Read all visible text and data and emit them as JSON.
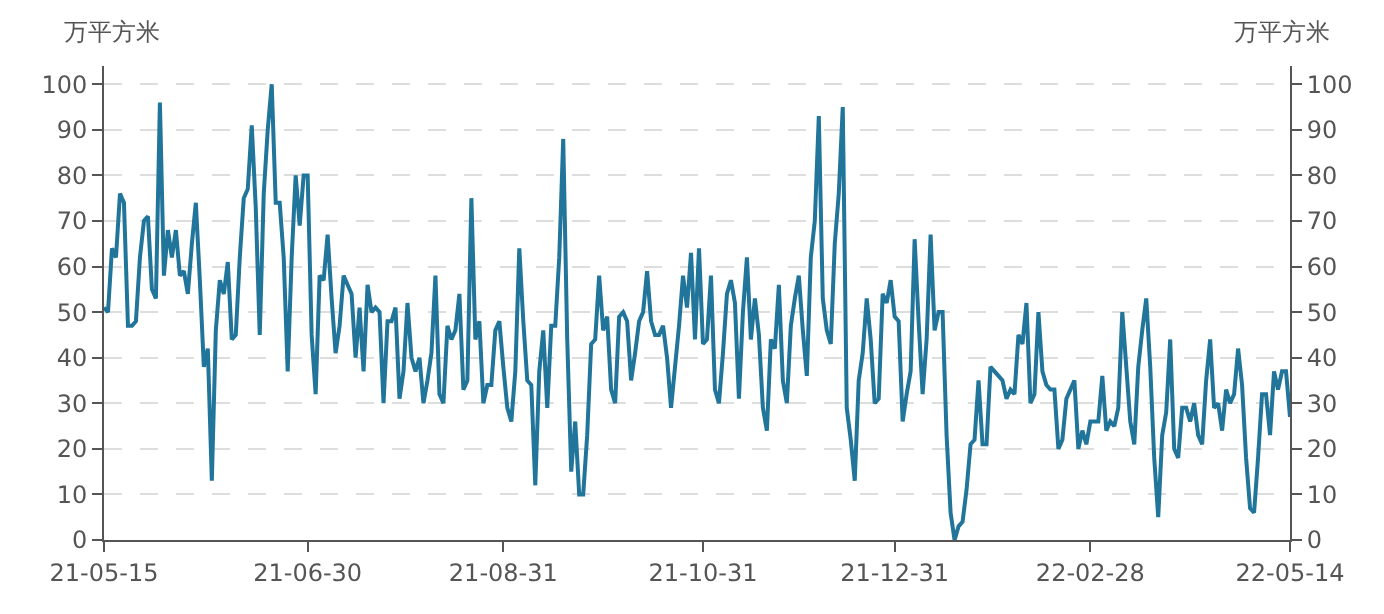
{
  "chart_data": {
    "type": "line",
    "ylabel": "万平方米",
    "y2label": "万平方米",
    "categories": [
      "21-05-15",
      null,
      null,
      null,
      null,
      null,
      null,
      null,
      null,
      null,
      null,
      null,
      null,
      null,
      null,
      null,
      null,
      null,
      null,
      null,
      null,
      null,
      null,
      null,
      null,
      null,
      null,
      null,
      null,
      null,
      null,
      null,
      null,
      null,
      null,
      null,
      null,
      null,
      null,
      null,
      null,
      null,
      null,
      null,
      null,
      null,
      null,
      null,
      null,
      null,
      null,
      "21-06-30",
      null,
      null,
      null,
      null,
      null,
      null,
      null,
      null,
      null,
      null,
      null,
      null,
      null,
      null,
      null,
      null,
      null,
      null,
      null,
      null,
      null,
      null,
      null,
      null,
      null,
      null,
      null,
      null,
      null,
      null,
      null,
      null,
      null,
      null,
      null,
      null,
      null,
      null,
      null,
      null,
      null,
      null,
      null,
      null,
      null,
      null,
      null,
      null,
      "21-08-31",
      null,
      null,
      null,
      null,
      null,
      null,
      null,
      null,
      null,
      null,
      null,
      null,
      null,
      null,
      null,
      null,
      null,
      null,
      null,
      null,
      null,
      null,
      null,
      null,
      null,
      null,
      null,
      null,
      null,
      null,
      null,
      null,
      null,
      null,
      null,
      null,
      null,
      null,
      null,
      null,
      null,
      null,
      null,
      null,
      null,
      null,
      null,
      null,
      null,
      "21-10-31",
      null,
      null,
      null,
      null,
      null,
      null,
      null,
      null,
      null,
      null,
      null,
      null,
      null,
      null,
      null,
      null,
      null,
      null,
      null,
      null,
      null,
      null,
      null,
      null,
      null,
      null,
      null,
      null,
      null,
      null,
      null,
      null,
      null,
      null,
      null,
      null,
      null,
      null,
      null,
      null,
      null,
      null,
      null,
      null,
      null,
      null,
      null,
      "21-12-31",
      null,
      null,
      null,
      null,
      null,
      null,
      null,
      null,
      null,
      null,
      null,
      null,
      null,
      null,
      null,
      null,
      null,
      null,
      null,
      null,
      null,
      null,
      null,
      null,
      null,
      null,
      null,
      null,
      null,
      null,
      null,
      null,
      null,
      null,
      null,
      null,
      null,
      null,
      null,
      null,
      null,
      null,
      null,
      null,
      null,
      null,
      null,
      null,
      "22-02-28",
      null,
      null,
      null,
      null,
      null,
      null,
      null,
      null,
      null,
      null,
      null,
      null,
      null,
      null,
      null,
      null,
      null,
      null,
      null,
      null,
      null,
      null,
      null,
      null,
      null,
      null,
      null,
      null,
      null,
      null,
      null,
      null,
      null,
      null,
      null,
      null,
      null,
      null,
      null,
      null,
      null,
      null,
      null,
      null,
      null,
      null,
      null,
      null,
      null,
      "22-05-14"
    ],
    "series": [
      {
        "color": "#21759b",
        "values": [
          51,
          50,
          64,
          62,
          76,
          74,
          47,
          47,
          48,
          62,
          70,
          71,
          55,
          53,
          96,
          58,
          68,
          62,
          68,
          58,
          59,
          54,
          65,
          74,
          57,
          38,
          42,
          13,
          46,
          57,
          54,
          61,
          44,
          45,
          62,
          75,
          77,
          91,
          73,
          45,
          76,
          90,
          100,
          74,
          74,
          62,
          37,
          62,
          80,
          69,
          80,
          80,
          45,
          32,
          58,
          57,
          67,
          53,
          41,
          47,
          58,
          56,
          54,
          40,
          51,
          37,
          56,
          50,
          51,
          50,
          30,
          48,
          48,
          51,
          31,
          37,
          52,
          40,
          37,
          40,
          30,
          35,
          41,
          58,
          32,
          30,
          47,
          44,
          46,
          54,
          33,
          35,
          75,
          44,
          48,
          30,
          34,
          34,
          46,
          48,
          38,
          29,
          26,
          37,
          64,
          48,
          35,
          34,
          12,
          37,
          46,
          29,
          47,
          47,
          62,
          88,
          44,
          15,
          26,
          10,
          10,
          23,
          43,
          44,
          58,
          46,
          49,
          33,
          30,
          49,
          50,
          48,
          35,
          41,
          48,
          50,
          59,
          48,
          45,
          45,
          47,
          40,
          29,
          38,
          47,
          58,
          51,
          63,
          44,
          64,
          43,
          44,
          58,
          33,
          30,
          41,
          54,
          57,
          52,
          31,
          50,
          62,
          44,
          53,
          45,
          29,
          24,
          44,
          42,
          56,
          35,
          30,
          47,
          53,
          58,
          46,
          36,
          62,
          70,
          93,
          53,
          46,
          43,
          65,
          76,
          95,
          29,
          22,
          13,
          35,
          41,
          53,
          44,
          30,
          31,
          54,
          52,
          57,
          49,
          48,
          26,
          32,
          37,
          66,
          48,
          32,
          44,
          67,
          46,
          50,
          50,
          23,
          6,
          0,
          3,
          4,
          11,
          21,
          22,
          35,
          21,
          21,
          38,
          37,
          36,
          35,
          31,
          33,
          32,
          45,
          43,
          52,
          30,
          32,
          50,
          37,
          34,
          33,
          33,
          20,
          22,
          31,
          33,
          35,
          20,
          24,
          21,
          26,
          26,
          26,
          36,
          24,
          26,
          25,
          29,
          50,
          38,
          26,
          21,
          38,
          46,
          53,
          38,
          18,
          5,
          23,
          28,
          44,
          20,
          18,
          29,
          29,
          26,
          30,
          23,
          21,
          35,
          44,
          29,
          30,
          24,
          33,
          30,
          32,
          42,
          34,
          18,
          7,
          6,
          18,
          32,
          32,
          23,
          37,
          33,
          37,
          37,
          27
        ]
      }
    ],
    "ylim": [
      0,
      104
    ],
    "yticks": [
      0,
      10,
      20,
      30,
      40,
      50,
      60,
      70,
      80,
      90,
      100
    ],
    "y2lim": [
      0,
      104
    ],
    "y2ticks": [
      0,
      10,
      20,
      30,
      40,
      50,
      60,
      70,
      80,
      90,
      100
    ],
    "grid": "y",
    "line_style": "solid",
    "marker": "none"
  }
}
